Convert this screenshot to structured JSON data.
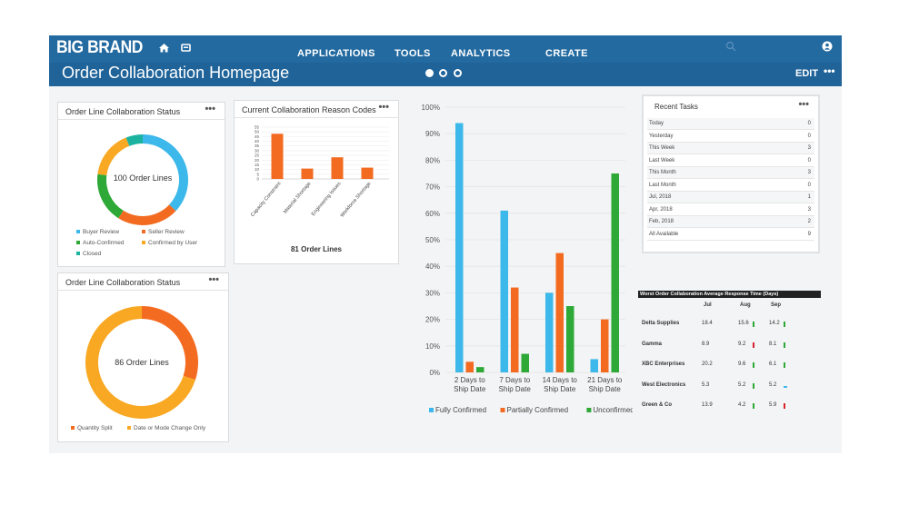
{
  "header": {
    "brand": "BIG BRAND",
    "nav": [
      "APPLICATIONS",
      "TOOLS",
      "ANALYTICS",
      "CREATE"
    ],
    "page_title": "Order Collaboration Homepage",
    "edit_label": "EDIT",
    "more_label": "•••",
    "icons": [
      "home-icon",
      "document-icon",
      "search-icon",
      "user-icon"
    ]
  },
  "panel1": {
    "title": "Order Line Collaboration Status",
    "menu": "•••",
    "center_label": "100 Order Lines",
    "legend": [
      {
        "label": "Buyer Review",
        "color": "#3cb8ea"
      },
      {
        "label": "Seller Review",
        "color": "#f36b21"
      },
      {
        "label": "Auto-Confirmed",
        "color": "#2ea836"
      },
      {
        "label": "Confirmed by User",
        "color": "#f8a823"
      },
      {
        "label": "Closed",
        "color": "#1bb3a0"
      }
    ]
  },
  "panel2": {
    "title": "Current Collaboration Reason Codes",
    "menu": "•••",
    "footer": "81 Order Lines"
  },
  "panel3": {
    "title": "Order Line Collaboration Status",
    "menu": "•••",
    "center_label": "86 Order Lines",
    "legend": [
      {
        "label": "Quantity Split",
        "color": "#f36b21"
      },
      {
        "label": "Date or Mode Change Only",
        "color": "#f8a823"
      }
    ]
  },
  "recent_tasks": {
    "title": "Recent Tasks",
    "menu": "•••",
    "rows": [
      {
        "label": "Today",
        "count": "0"
      },
      {
        "label": "Yesterday",
        "count": "0"
      },
      {
        "label": "This Week",
        "count": "3"
      },
      {
        "label": "Last Week",
        "count": "0"
      },
      {
        "label": "This Month",
        "count": "3"
      },
      {
        "label": "Last Month",
        "count": "0"
      },
      {
        "label": "Jul, 2018",
        "count": "1"
      },
      {
        "label": "Apr, 2018",
        "count": "3"
      },
      {
        "label": "Feb, 2018",
        "count": "2"
      },
      {
        "label": "All Available",
        "count": "9"
      }
    ]
  },
  "response_table": {
    "title": "Worst Order Collaboration Average Response Time (Days)",
    "columns": [
      "Jul",
      "Aug",
      "Sep"
    ],
    "rows": [
      {
        "company": "Delta Supplies",
        "values": [
          "18.4",
          "15.6",
          "14.2"
        ],
        "trend": [
          "",
          "up",
          "up"
        ]
      },
      {
        "company": "Gamma",
        "values": [
          "8.9",
          "9.2",
          "8.1"
        ],
        "trend": [
          "",
          "down",
          "up"
        ]
      },
      {
        "company": "XBC Enterprises",
        "values": [
          "20.2",
          "9.6",
          "6.1"
        ],
        "trend": [
          "",
          "up",
          "up"
        ]
      },
      {
        "company": "West Electronics",
        "values": [
          "5.3",
          "5.2",
          "5.2"
        ],
        "trend": [
          "",
          "up",
          "flat"
        ]
      },
      {
        "company": "Green & Co",
        "values": [
          "13.9",
          "4.2",
          "5.9"
        ],
        "trend": [
          "",
          "up",
          "down"
        ]
      }
    ],
    "trend_colors": {
      "up": "#2ea836",
      "down": "#d9232e",
      "flat": "#3cb8ea"
    }
  },
  "chart_data": [
    {
      "type": "pie",
      "title": "Order Line Collaboration Status",
      "center_label": "100 Order Lines",
      "donut": true,
      "slices": [
        {
          "label": "Buyer Review",
          "value": 37,
          "color": "#3cb8ea"
        },
        {
          "label": "Seller Review",
          "value": 22,
          "color": "#f36b21"
        },
        {
          "label": "Auto-Confirmed",
          "value": 18,
          "color": "#2ea836"
        },
        {
          "label": "Confirmed by User",
          "value": 17,
          "color": "#f8a823"
        },
        {
          "label": "Closed",
          "value": 6,
          "color": "#1bb3a0"
        }
      ]
    },
    {
      "type": "bar",
      "title": "Current Collaboration Reason Codes",
      "categories": [
        "Capacity Constraint",
        "Material Shortage",
        "Engineering Issues",
        "Workforce Shortage"
      ],
      "values": [
        48,
        11,
        23,
        12
      ],
      "ylim": [
        0,
        55
      ],
      "yticks": [
        0,
        5,
        10,
        15,
        20,
        25,
        30,
        35,
        40,
        45,
        50,
        55
      ],
      "color": "#f36b21",
      "footer": "81 Order Lines"
    },
    {
      "type": "pie",
      "title": "Order Line Collaboration Status",
      "center_label": "86 Order Lines",
      "donut": true,
      "slices": [
        {
          "label": "Quantity Split",
          "value": 30,
          "color": "#f36b21"
        },
        {
          "label": "Date or Mode Change Only",
          "value": 70,
          "color": "#f8a823"
        }
      ]
    },
    {
      "type": "bar",
      "categories": [
        "2 Days to Ship Date",
        "7 Days to Ship Date",
        "14 Days to Ship Date",
        "21 Days to Ship Date"
      ],
      "series": [
        {
          "name": "Fully Confirmed",
          "color": "#3cb8ea",
          "values": [
            94,
            61,
            30,
            5
          ]
        },
        {
          "name": "Partially Confirmed",
          "color": "#f36b21",
          "values": [
            4,
            32,
            45,
            20
          ]
        },
        {
          "name": "Unconfirmed",
          "color": "#2ea836",
          "values": [
            2,
            7,
            25,
            75
          ]
        }
      ],
      "ylim": [
        0,
        100
      ],
      "yticks": [
        "0%",
        "10%",
        "20%",
        "30%",
        "40%",
        "50%",
        "60%",
        "70%",
        "80%",
        "90%",
        "100%"
      ],
      "legend": "bottom",
      "grid": true
    }
  ]
}
